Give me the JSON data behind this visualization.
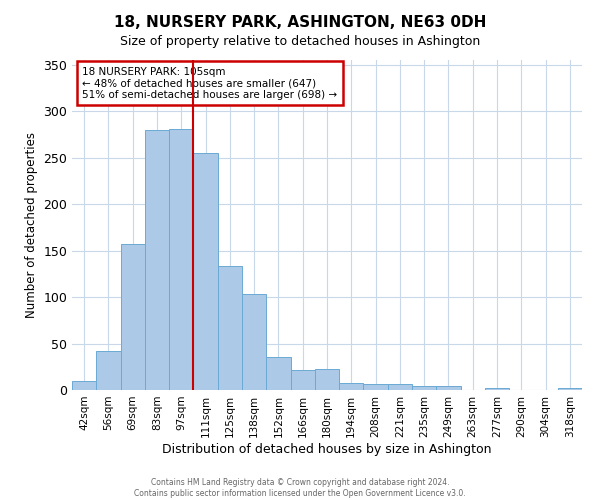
{
  "title": "18, NURSERY PARK, ASHINGTON, NE63 0DH",
  "subtitle": "Size of property relative to detached houses in Ashington",
  "xlabel": "Distribution of detached houses by size in Ashington",
  "ylabel": "Number of detached properties",
  "bar_labels": [
    "42sqm",
    "56sqm",
    "69sqm",
    "83sqm",
    "97sqm",
    "111sqm",
    "125sqm",
    "138sqm",
    "152sqm",
    "166sqm",
    "180sqm",
    "194sqm",
    "208sqm",
    "221sqm",
    "235sqm",
    "249sqm",
    "263sqm",
    "277sqm",
    "290sqm",
    "304sqm",
    "318sqm"
  ],
  "bar_values": [
    10,
    42,
    157,
    280,
    281,
    255,
    133,
    103,
    35,
    22,
    23,
    7,
    6,
    6,
    4,
    4,
    0,
    2,
    0,
    0,
    2
  ],
  "bar_color": "#adc9e8",
  "bar_edge_color": "#6aaad4",
  "background_color": "#ffffff",
  "grid_color": "#c8d8e8",
  "annotation_line1": "18 NURSERY PARK: 105sqm",
  "annotation_line2": "← 48% of detached houses are smaller (647)",
  "annotation_line3": "51% of semi-detached houses are larger (698) →",
  "annotation_box_edge_color": "#cc0000",
  "vline_x": 4.5,
  "vline_color": "#cc0000",
  "ylim": [
    0,
    355
  ],
  "yticks": [
    0,
    50,
    100,
    150,
    200,
    250,
    300,
    350
  ],
  "footer_line1": "Contains HM Land Registry data © Crown copyright and database right 2024.",
  "footer_line2": "Contains public sector information licensed under the Open Government Licence v3.0."
}
